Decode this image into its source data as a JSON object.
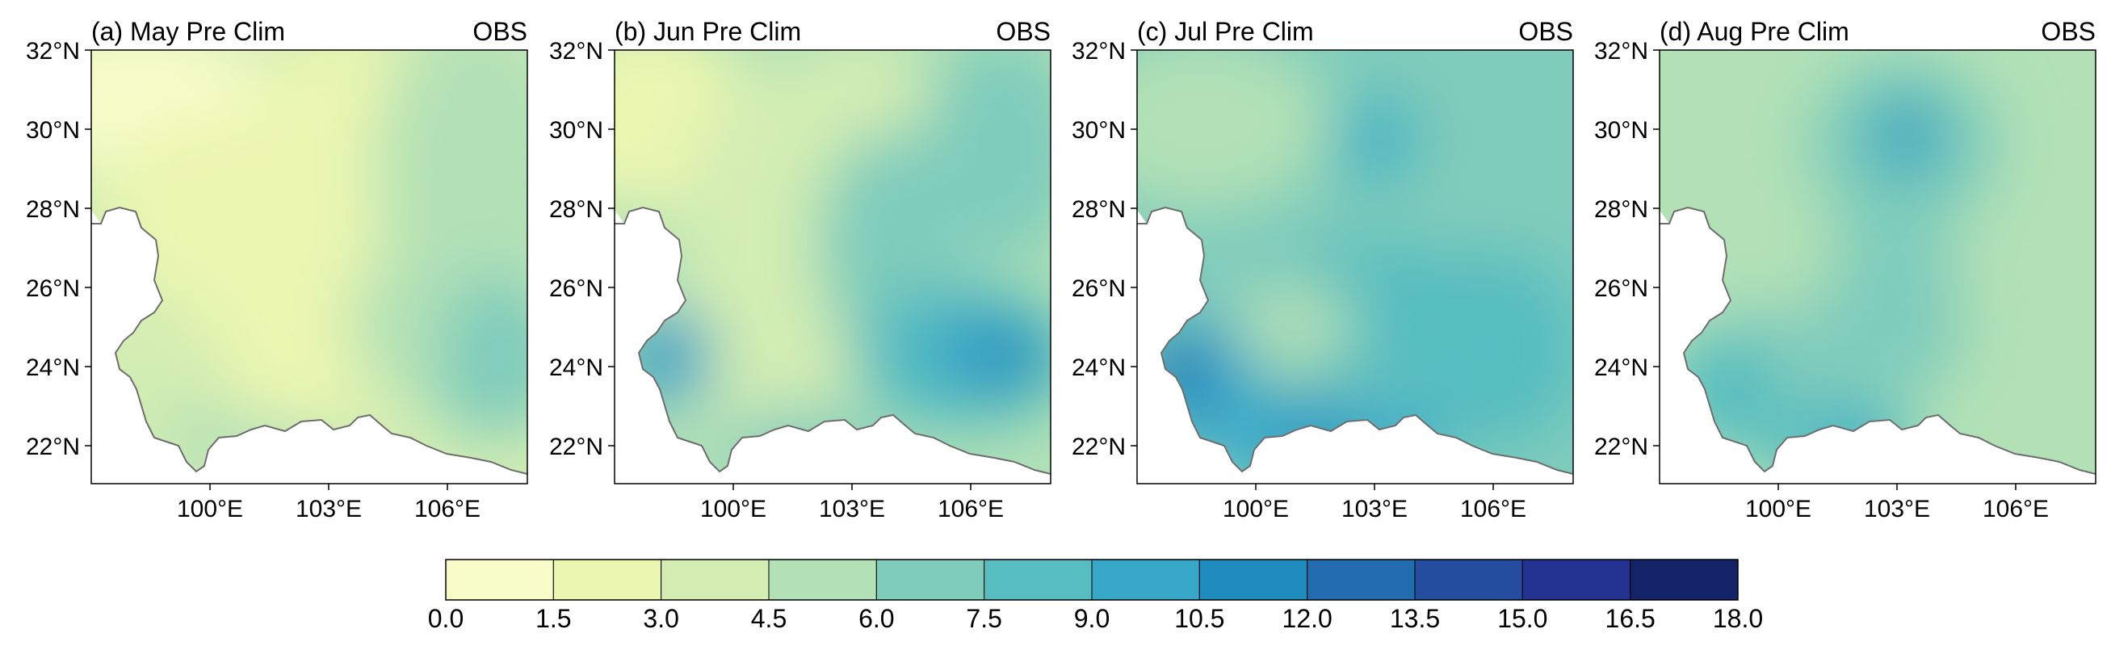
{
  "panels": [
    {
      "title": "(a) May Pre Clim",
      "source": "OBS"
    },
    {
      "title": "(b) Jun Pre Clim",
      "source": "OBS"
    },
    {
      "title": "(c) Jul Pre Clim",
      "source": "OBS"
    },
    {
      "title": "(d) Aug Pre Clim",
      "source": "OBS"
    }
  ],
  "lat_ticks": [
    "32°N",
    "30°N",
    "28°N",
    "26°N",
    "24°N",
    "22°N"
  ],
  "lon_ticks": [
    "100°E",
    "103°E",
    "106°E"
  ],
  "colorbar": {
    "ticks": [
      "0.0",
      "1.5",
      "3.0",
      "4.5",
      "6.0",
      "7.5",
      "9.0",
      "10.5",
      "12.0",
      "13.5",
      "15.0",
      "16.5",
      "18.0"
    ],
    "colors": [
      "#f7fcc9",
      "#ebf6b0",
      "#d3edb3",
      "#b2e1b6",
      "#7fccbb",
      "#57bdc0",
      "#37a7c9",
      "#208bbd",
      "#216bae",
      "#244c9f",
      "#243392",
      "#142268"
    ]
  },
  "chart_data": [
    {
      "type": "heatmap",
      "title": "(a) May Pre Clim",
      "source_label": "OBS",
      "ylim_deg_N": [
        21,
        32
      ],
      "xlim_deg_E": [
        97,
        108
      ],
      "summary": {
        "west_northwest": 1.0,
        "central": 2.5,
        "north_central": 3.5,
        "east": 5.5,
        "southeast": 7.0,
        "south_border": 5.0
      }
    },
    {
      "type": "heatmap",
      "title": "(b) Jun Pre Clim",
      "source_label": "OBS",
      "ylim_deg_N": [
        21,
        32
      ],
      "xlim_deg_E": [
        97,
        108
      ],
      "summary": {
        "northwest": 2.5,
        "central": 4.0,
        "north_central": 6.5,
        "east": 8.5,
        "east_core": 10.5,
        "southwest": 10.5,
        "south": 8.0
      }
    },
    {
      "type": "heatmap",
      "title": "(c) Jul Pre Clim",
      "source_label": "OBS",
      "ylim_deg_N": [
        21,
        32
      ],
      "xlim_deg_E": [
        97,
        108
      ],
      "summary": {
        "north": 5.5,
        "central": 7.5,
        "northeast_core": 9.5,
        "east": 8.5,
        "southwest": 12.5,
        "south": 11.0
      }
    },
    {
      "type": "heatmap",
      "title": "(d) Aug Pre Clim",
      "source_label": "OBS",
      "ylim_deg_N": [
        21,
        32
      ],
      "xlim_deg_E": [
        97,
        108
      ],
      "summary": {
        "north": 5.0,
        "central": 7.5,
        "north_core": 10.5,
        "east": 6.5,
        "southwest": 9.0,
        "south": 9.5
      }
    }
  ]
}
